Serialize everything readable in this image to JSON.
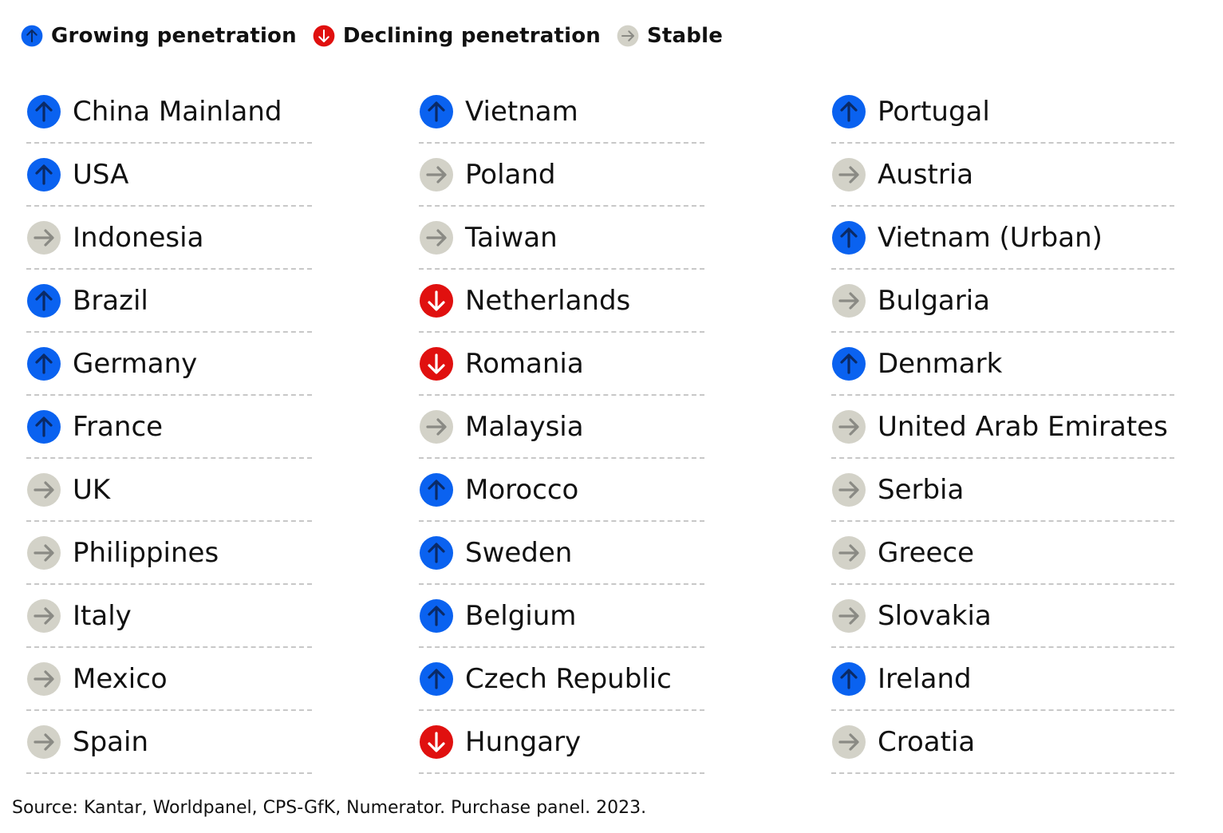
{
  "legend": [
    {
      "label": "Growing penetration",
      "trend": "up",
      "icon": "arrow-up-icon"
    },
    {
      "label": "Declining penetration",
      "trend": "down",
      "icon": "arrow-down-icon"
    },
    {
      "label": "Stable",
      "trend": "stable",
      "icon": "arrow-right-icon"
    }
  ],
  "colors": {
    "up": "#0a62f0",
    "down": "#e0100f",
    "stable": "#d3d2c8",
    "up_arrow": "#0a2a66",
    "down_arrow": "#ffffff",
    "stable_arrow": "#8a8a84"
  },
  "chart_data": {
    "type": "table",
    "columns": [
      [
        {
          "country": "China Mainland",
          "trend": "up"
        },
        {
          "country": "USA",
          "trend": "up"
        },
        {
          "country": "Indonesia",
          "trend": "stable"
        },
        {
          "country": "Brazil",
          "trend": "up"
        },
        {
          "country": "Germany",
          "trend": "up"
        },
        {
          "country": "France",
          "trend": "up"
        },
        {
          "country": "UK",
          "trend": "stable"
        },
        {
          "country": "Philippines",
          "trend": "stable"
        },
        {
          "country": "Italy",
          "trend": "stable"
        },
        {
          "country": "Mexico",
          "trend": "stable"
        },
        {
          "country": "Spain",
          "trend": "stable"
        }
      ],
      [
        {
          "country": "Vietnam",
          "trend": "up"
        },
        {
          "country": "Poland",
          "trend": "stable"
        },
        {
          "country": "Taiwan",
          "trend": "stable"
        },
        {
          "country": "Netherlands",
          "trend": "down"
        },
        {
          "country": "Romania",
          "trend": "down"
        },
        {
          "country": "Malaysia",
          "trend": "stable"
        },
        {
          "country": "Morocco",
          "trend": "up"
        },
        {
          "country": "Sweden",
          "trend": "up"
        },
        {
          "country": "Belgium",
          "trend": "up"
        },
        {
          "country": "Czech Republic",
          "trend": "up"
        },
        {
          "country": "Hungary",
          "trend": "down"
        }
      ],
      [
        {
          "country": "Portugal",
          "trend": "up"
        },
        {
          "country": "Austria",
          "trend": "stable"
        },
        {
          "country": "Vietnam (Urban)",
          "trend": "up"
        },
        {
          "country": "Bulgaria",
          "trend": "stable"
        },
        {
          "country": "Denmark",
          "trend": "up"
        },
        {
          "country": "United Arab Emirates",
          "trend": "stable"
        },
        {
          "country": "Serbia",
          "trend": "stable"
        },
        {
          "country": "Greece",
          "trend": "stable"
        },
        {
          "country": "Slovakia",
          "trend": "stable"
        },
        {
          "country": "Ireland",
          "trend": "up"
        },
        {
          "country": "Croatia",
          "trend": "stable"
        }
      ]
    ]
  },
  "source": "Source: Kantar, Worldpanel, CPS-GfK, Numerator. Purchase panel. 2023."
}
